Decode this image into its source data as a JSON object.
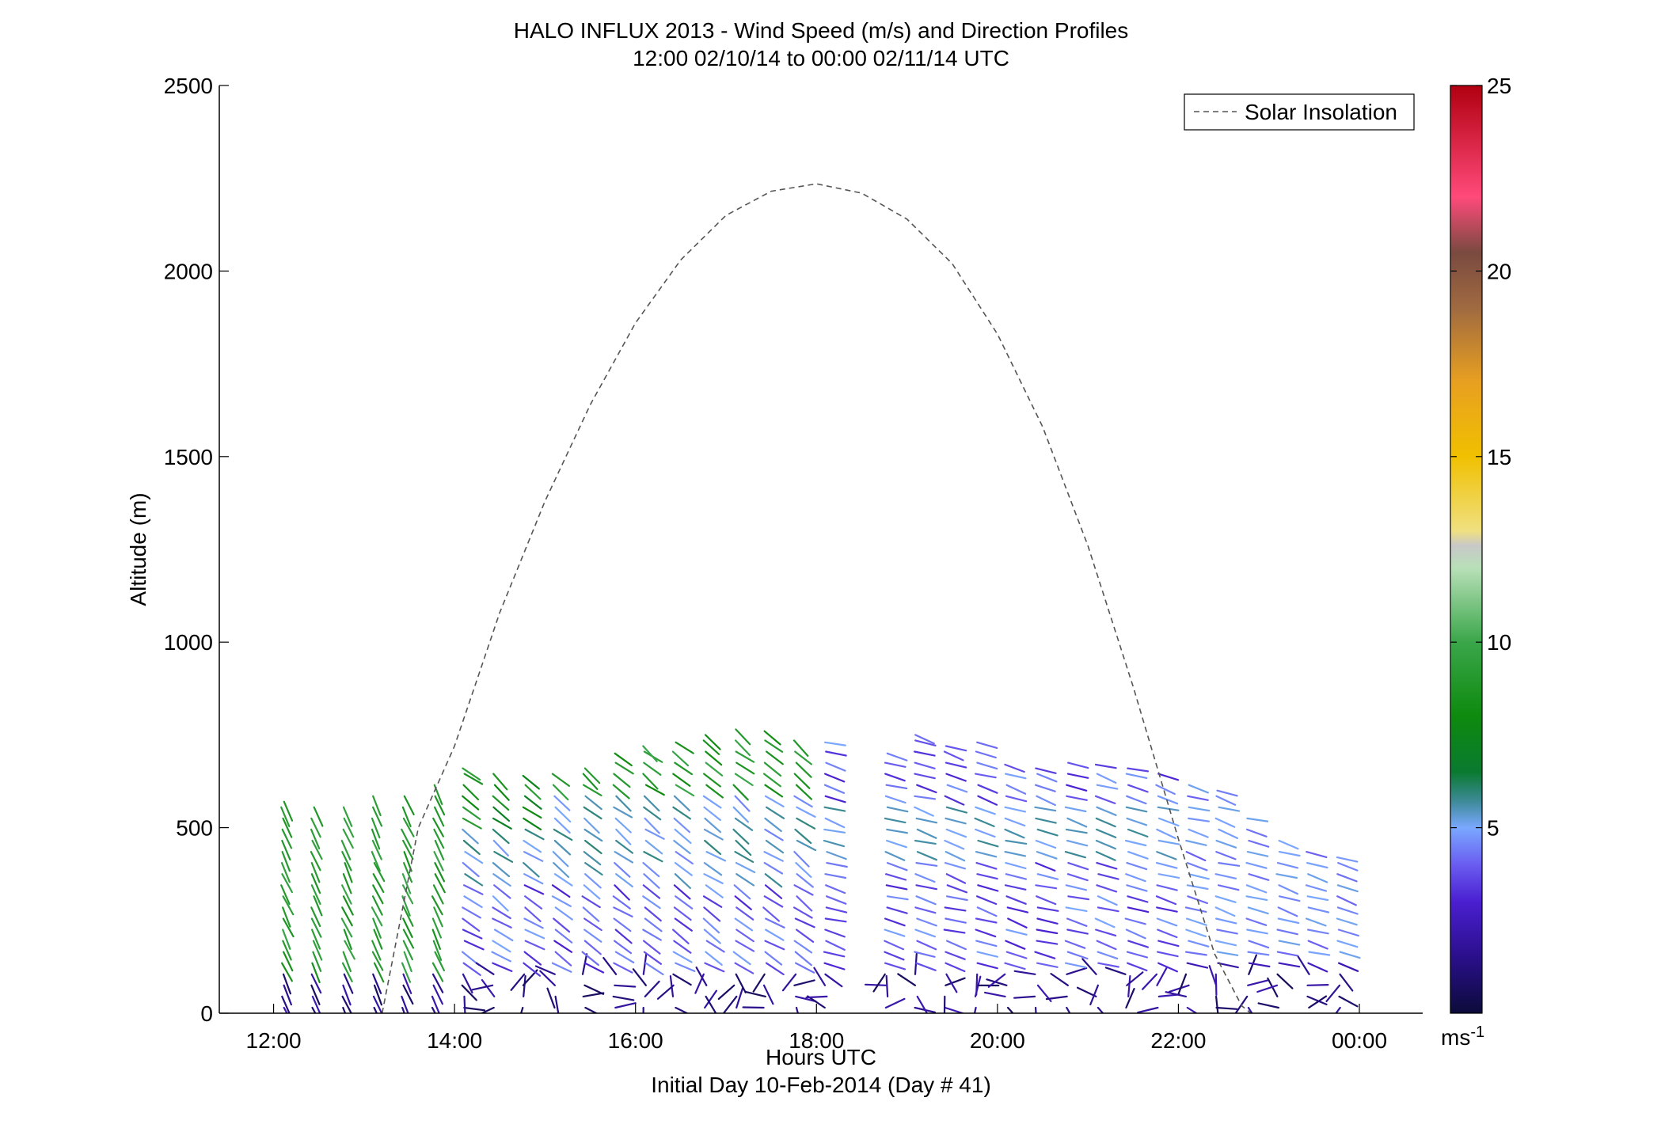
{
  "chart_data": {
    "type": "scatter",
    "title": "HALO INFLUX 2013 - Wind Speed (m/s) and Direction Profiles",
    "subtitle": "12:00 02/10/14 to 00:00 02/11/14  UTC",
    "xlabel": "Hours UTC",
    "footer": "Initial Day 10-Feb-2014 (Day # 41)",
    "ylabel": "Altitude (m)",
    "x_ticks": [
      "12:00",
      "14:00",
      "16:00",
      "18:00",
      "20:00",
      "22:00",
      "00:00"
    ],
    "x_tick_hours": [
      12,
      14,
      16,
      18,
      20,
      22,
      24
    ],
    "xlim": [
      11.4,
      24.7
    ],
    "ylim": [
      0,
      2500
    ],
    "y_ticks": [
      0,
      500,
      1000,
      1500,
      2000,
      2500
    ],
    "grid": false,
    "legend": {
      "position": "top-right",
      "entries": [
        "Solar Insolation"
      ]
    },
    "solar_insolation": {
      "style": "dashed",
      "color": "#555555",
      "x": [
        13.2,
        13.6,
        14.0,
        14.5,
        15.0,
        15.5,
        16.0,
        16.5,
        17.0,
        17.5,
        18.0,
        18.5,
        19.0,
        19.5,
        20.0,
        20.5,
        21.0,
        21.5,
        22.0,
        22.4,
        22.7,
        22.8
      ],
      "y": [
        0,
        500,
        720,
        1080,
        1380,
        1640,
        1860,
        2030,
        2150,
        2215,
        2235,
        2210,
        2140,
        2020,
        1830,
        1580,
        1260,
        880,
        470,
        160,
        20,
        0
      ]
    },
    "wind_profiles": {
      "description_note": "",
      "x_start": 12.1,
      "x_step": 0.333,
      "columns": [
        {
          "t": 12.1,
          "top": 570
        },
        {
          "t": 12.43,
          "top": 560
        },
        {
          "t": 12.77,
          "top": 560
        },
        {
          "t": 13.1,
          "top": 590
        },
        {
          "t": 13.43,
          "top": 590
        },
        {
          "t": 13.77,
          "top": 620
        },
        {
          "t": 14.1,
          "top": 660
        },
        {
          "t": 14.43,
          "top": 650
        },
        {
          "t": 14.77,
          "top": 640
        },
        {
          "t": 15.1,
          "top": 650
        },
        {
          "t": 15.43,
          "top": 660
        },
        {
          "t": 15.77,
          "top": 700
        },
        {
          "t": 16.1,
          "top": 720
        },
        {
          "t": 16.43,
          "top": 730
        },
        {
          "t": 16.77,
          "top": 750
        },
        {
          "t": 17.1,
          "top": 770
        },
        {
          "t": 17.43,
          "top": 760
        },
        {
          "t": 17.77,
          "top": 740
        },
        {
          "t": 18.1,
          "top": 730
        },
        {
          "t": 18.77,
          "top": 700
        },
        {
          "t": 19.1,
          "top": 750
        },
        {
          "t": 19.43,
          "top": 720
        },
        {
          "t": 19.77,
          "top": 730
        },
        {
          "t": 20.1,
          "top": 670
        },
        {
          "t": 20.43,
          "top": 660
        },
        {
          "t": 20.77,
          "top": 680
        },
        {
          "t": 21.1,
          "top": 670
        },
        {
          "t": 21.43,
          "top": 660
        },
        {
          "t": 21.77,
          "top": 650
        },
        {
          "t": 22.1,
          "top": 620
        },
        {
          "t": 22.43,
          "top": 600
        },
        {
          "t": 22.77,
          "top": 530
        },
        {
          "t": 23.1,
          "top": 470
        },
        {
          "t": 23.43,
          "top": 440
        },
        {
          "t": 23.77,
          "top": 420
        }
      ],
      "level_spacing_m": 30,
      "speed_by_column_note": ""
    },
    "colorbar": {
      "label": "ms",
      "label_exp": "-1",
      "ticks": [
        5,
        10,
        15,
        20,
        25
      ],
      "range": [
        0,
        25
      ],
      "stops": [
        {
          "v": 0,
          "c": "#0b0b3a"
        },
        {
          "v": 1.5,
          "c": "#2a0f8a"
        },
        {
          "v": 3,
          "c": "#4a1fd0"
        },
        {
          "v": 4,
          "c": "#6a5cf0"
        },
        {
          "v": 5,
          "c": "#7aa8ff"
        },
        {
          "v": 5.7,
          "c": "#3e8a9a"
        },
        {
          "v": 6.5,
          "c": "#0a7a30"
        },
        {
          "v": 8,
          "c": "#0e8a0e"
        },
        {
          "v": 10,
          "c": "#3aa64a"
        },
        {
          "v": 12,
          "c": "#b8e0b8"
        },
        {
          "v": 12.6,
          "c": "#c8c8c8"
        },
        {
          "v": 13,
          "c": "#f0e080"
        },
        {
          "v": 15,
          "c": "#f0c000"
        },
        {
          "v": 17,
          "c": "#e8a020"
        },
        {
          "v": 19,
          "c": "#a06a40"
        },
        {
          "v": 20.5,
          "c": "#7a4a40"
        },
        {
          "v": 22,
          "c": "#ff4a7a"
        },
        {
          "v": 25,
          "c": "#b00010"
        }
      ]
    }
  }
}
